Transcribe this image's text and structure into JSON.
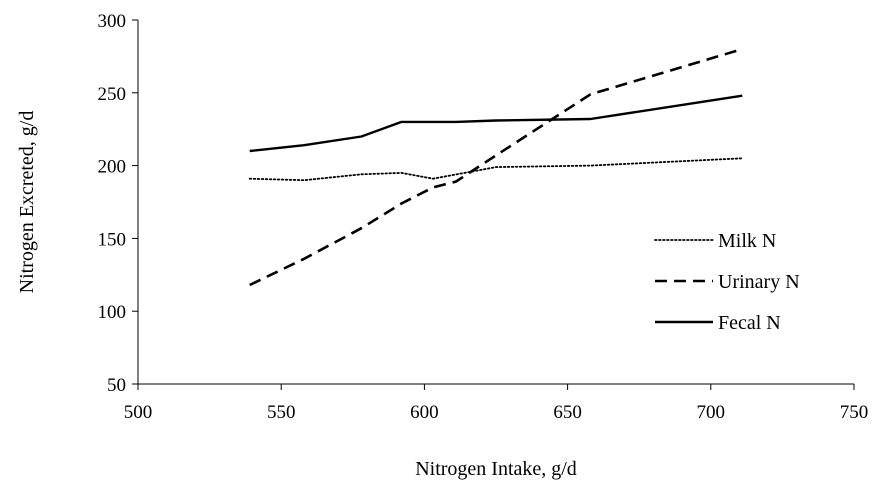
{
  "chart_data": {
    "type": "line",
    "title": "",
    "xlabel": "Nitrogen Intake, g/d",
    "ylabel": "Nitrogen Excreted, g/d",
    "xlim": [
      500,
      750
    ],
    "ylim": [
      50,
      300
    ],
    "xticks": [
      500,
      550,
      600,
      650,
      700,
      750
    ],
    "yticks": [
      50,
      100,
      150,
      200,
      250,
      300
    ],
    "grid": false,
    "legend_position": "right",
    "series": [
      {
        "name": "Milk N",
        "style": "dotted",
        "color": "#000000",
        "x": [
          539,
          558,
          578,
          592,
          603,
          625,
          658,
          711
        ],
        "y": [
          191,
          190,
          194,
          195,
          191,
          199,
          200,
          205
        ]
      },
      {
        "name": "Urinary N",
        "style": "dashed",
        "color": "#000000",
        "x": [
          539,
          558,
          578,
          592,
          603,
          611,
          625,
          658,
          711
        ],
        "y": [
          118,
          136,
          157,
          174,
          185,
          189,
          207,
          249,
          280
        ]
      },
      {
        "name": "Fecal N",
        "style": "solid",
        "color": "#000000",
        "x": [
          539,
          558,
          578,
          592,
          611,
          625,
          658,
          711
        ],
        "y": [
          210,
          214,
          220,
          230,
          230,
          231,
          232,
          248
        ]
      }
    ]
  }
}
